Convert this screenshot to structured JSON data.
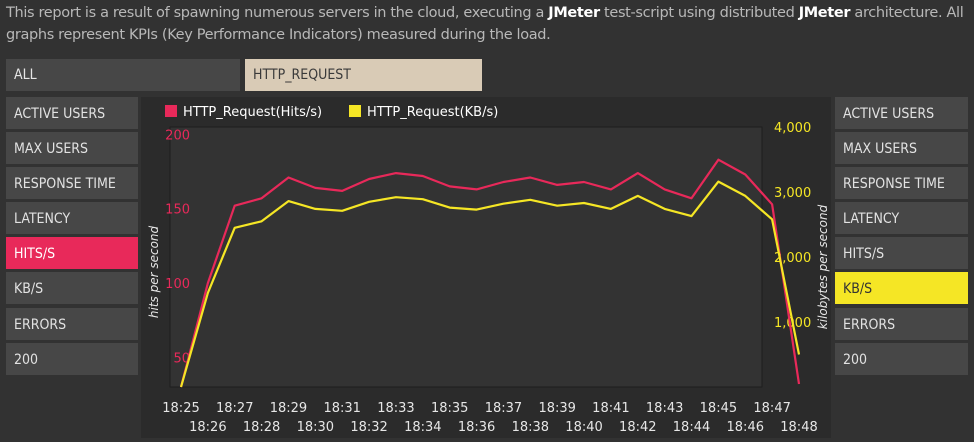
{
  "intro": {
    "part1": "This report is a result of spawning numerous servers in the cloud, executing a ",
    "jmeter1": "JMeter",
    "part2": " test-script using distributed ",
    "jmeter2": "JMeter",
    "part3": " architecture. All graphs represent KPIs (Key Performance Indicators) measured during the load."
  },
  "tabs": [
    {
      "label": "ALL",
      "active": false
    },
    {
      "label": "HTTP_REQUEST",
      "active": true
    }
  ],
  "left_menu": [
    "ACTIVE USERS",
    "MAX USERS",
    "RESPONSE TIME",
    "LATENCY",
    "HITS/S",
    "KB/S",
    "ERRORS",
    "200"
  ],
  "right_menu": [
    "ACTIVE USERS",
    "MAX USERS",
    "RESPONSE TIME",
    "LATENCY",
    "HITS/S",
    "KB/S",
    "ERRORS",
    "200"
  ],
  "left_active": "HITS/S",
  "right_active": "KB/S",
  "colors": {
    "hits": "#e8295a",
    "kb": "#f5e625",
    "background": "#323232",
    "panel": "#474747",
    "tab_active": "#d9cbb6"
  },
  "chart_data": {
    "type": "line",
    "x": [
      "18:25",
      "18:26",
      "18:27",
      "18:28",
      "18:29",
      "18:30",
      "18:31",
      "18:32",
      "18:33",
      "18:34",
      "18:35",
      "18:36",
      "18:37",
      "18:38",
      "18:39",
      "18:40",
      "18:41",
      "18:42",
      "18:43",
      "18:44",
      "18:45",
      "18:46",
      "18:47",
      "18:48"
    ],
    "series": [
      {
        "name": "HTTP_Request(Hits/s)",
        "axis": "left",
        "color": "#e8295a",
        "values": [
          30,
          100,
          152,
          157,
          171,
          164,
          162,
          170,
          174,
          172,
          165,
          163,
          168,
          171,
          166,
          168,
          163,
          174,
          163,
          157,
          183,
          173,
          153,
          32
        ]
      },
      {
        "name": "HTTP_Request(KB/s)",
        "axis": "right",
        "color": "#f5e625",
        "values": [
          0,
          1450,
          2450,
          2550,
          2860,
          2740,
          2710,
          2850,
          2920,
          2890,
          2760,
          2730,
          2820,
          2880,
          2790,
          2830,
          2740,
          2940,
          2740,
          2630,
          3160,
          2940,
          2580,
          500
        ]
      }
    ],
    "y_left": {
      "label": "hits per second",
      "ticks": [
        50,
        100,
        150,
        200
      ],
      "min": 30,
      "max": 205
    },
    "y_right": {
      "label": "kilobytes per second",
      "ticks": [
        "1,000",
        "2,000",
        "3,000",
        "4,000"
      ],
      "tick_values": [
        1000,
        2000,
        3000,
        4000
      ],
      "min": 0,
      "max": 4000
    },
    "grid": false,
    "legend": "top-left"
  }
}
